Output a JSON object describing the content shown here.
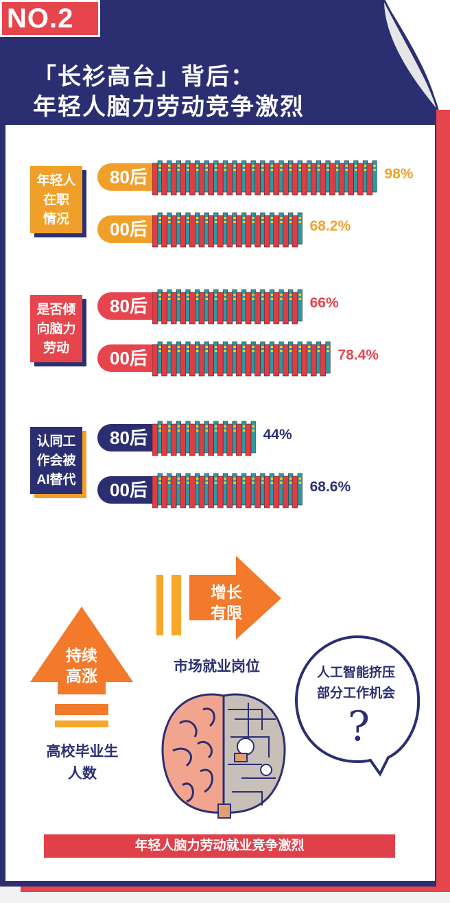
{
  "header": {
    "badge": "NO.2",
    "title_line1": "「长衫高台」背后：",
    "title_line2": "年轻人脑力劳动竞争激烈"
  },
  "colors": {
    "navy": "#2b2f72",
    "red": "#e6454e",
    "orange": "#f0a02a",
    "book_red": "#e03c44",
    "book_teal": "#2a9aa2",
    "book_yellow": "#f2d230"
  },
  "chart_data": {
    "type": "bar",
    "unit": "%",
    "groups": [
      {
        "label_lines": [
          "年轻人",
          "在职",
          "情况"
        ],
        "color": "#f0a02a",
        "rows": [
          {
            "name": "80后",
            "value": 98,
            "display": "98%"
          },
          {
            "name": "00后",
            "value": 68.2,
            "display": "68.2%"
          }
        ]
      },
      {
        "label_lines": [
          "是否倾",
          "向脑力",
          "劳动"
        ],
        "color": "#e6454e",
        "rows": [
          {
            "name": "80后",
            "value": 66,
            "display": "66%"
          },
          {
            "name": "00后",
            "value": 78.4,
            "display": "78.4%"
          }
        ]
      },
      {
        "label_lines": [
          "认同工",
          "作会被",
          "AI替代"
        ],
        "color": "#2b2f72",
        "rows": [
          {
            "name": "80后",
            "value": 44,
            "display": "44%"
          },
          {
            "name": "00后",
            "value": 68.6,
            "display": "68.6%"
          }
        ]
      }
    ]
  },
  "bottom": {
    "arrow_right_text": "增长\n有限",
    "market_label": "市场就业岗位",
    "arrow_up_text": "持续\n高涨",
    "graduates_label": "高校毕业生\n人数",
    "bubble_text": "人工智能挤压\n部分工作机会",
    "bubble_mark": "?",
    "footer": "年轻人脑力劳动就业竞争激烈"
  },
  "icons": [
    "book-stack-icon",
    "brain-icon",
    "speech-bubble-icon",
    "arrow-right-icon",
    "arrow-up-icon"
  ]
}
